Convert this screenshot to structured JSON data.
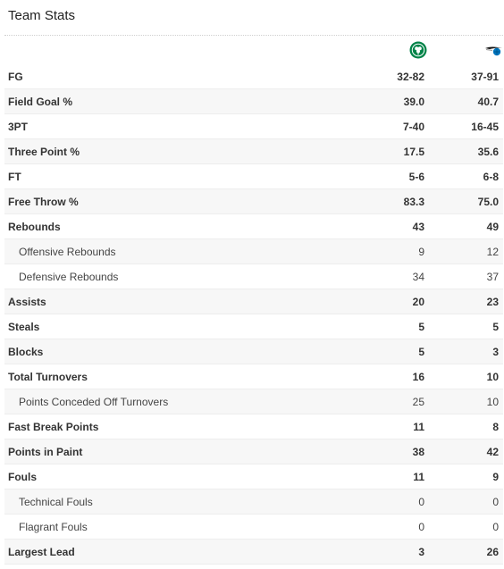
{
  "section": {
    "title": "Team Stats"
  },
  "teams": {
    "home_icon": "celtics-clover-logo-icon",
    "away_icon": "magic-logo-icon",
    "home_color": "#008348",
    "away_color": "#0077c0"
  },
  "rows": [
    {
      "label": "FG",
      "home": "32-82",
      "away": "37-91",
      "sub": false
    },
    {
      "label": "Field Goal %",
      "home": "39.0",
      "away": "40.7",
      "sub": false
    },
    {
      "label": "3PT",
      "home": "7-40",
      "away": "16-45",
      "sub": false
    },
    {
      "label": "Three Point %",
      "home": "17.5",
      "away": "35.6",
      "sub": false
    },
    {
      "label": "FT",
      "home": "5-6",
      "away": "6-8",
      "sub": false
    },
    {
      "label": "Free Throw %",
      "home": "83.3",
      "away": "75.0",
      "sub": false
    },
    {
      "label": "Rebounds",
      "home": "43",
      "away": "49",
      "sub": false
    },
    {
      "label": "Offensive Rebounds",
      "home": "9",
      "away": "12",
      "sub": true
    },
    {
      "label": "Defensive Rebounds",
      "home": "34",
      "away": "37",
      "sub": true
    },
    {
      "label": "Assists",
      "home": "20",
      "away": "23",
      "sub": false
    },
    {
      "label": "Steals",
      "home": "5",
      "away": "5",
      "sub": false
    },
    {
      "label": "Blocks",
      "home": "5",
      "away": "3",
      "sub": false
    },
    {
      "label": "Total Turnovers",
      "home": "16",
      "away": "10",
      "sub": false
    },
    {
      "label": "Points Conceded Off Turnovers",
      "home": "25",
      "away": "10",
      "sub": true
    },
    {
      "label": "Fast Break Points",
      "home": "11",
      "away": "8",
      "sub": false
    },
    {
      "label": "Points in Paint",
      "home": "38",
      "away": "42",
      "sub": false
    },
    {
      "label": "Fouls",
      "home": "11",
      "away": "9",
      "sub": false
    },
    {
      "label": "Technical Fouls",
      "home": "0",
      "away": "0",
      "sub": true
    },
    {
      "label": "Flagrant Fouls",
      "home": "0",
      "away": "0",
      "sub": true
    },
    {
      "label": "Largest Lead",
      "home": "3",
      "away": "26",
      "sub": false
    }
  ]
}
